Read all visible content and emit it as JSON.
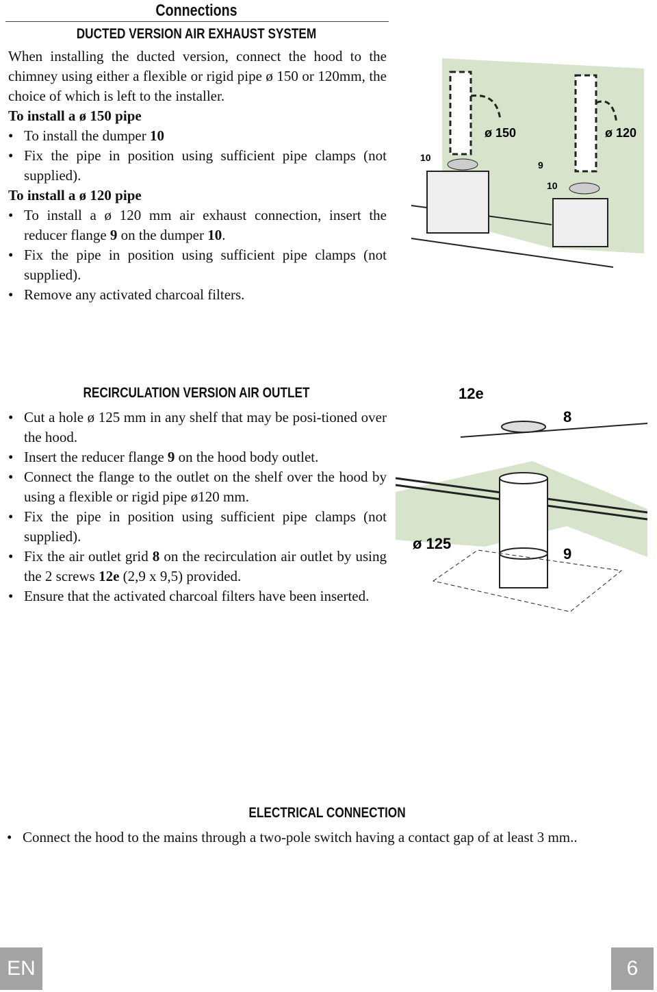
{
  "connections": {
    "title": "Connections"
  },
  "ducted": {
    "heading": "DUCTED VERSION AIR EXHAUST SYSTEM",
    "intro": "When installing the ducted version, connect the hood to the chimney using either a flexible or rigid pipe ø 150 or 120mm, the choice of which is left to the installer.",
    "pipe150": {
      "heading": "To install a ø 150 pipe",
      "bullets": [
        [
          "To install the dumper ",
          {
            "text": "10",
            "bold": true
          }
        ],
        [
          "Fix the pipe in position using sufficient pipe clamps (not supplied)."
        ]
      ]
    },
    "pipe120": {
      "heading": "To install a ø 120 pipe",
      "bullets": [
        [
          "To install a ø 120 mm air exhaust connection, insert the reducer flange ",
          {
            "text": "9",
            "bold": true
          },
          " on the dumper ",
          {
            "text": "10",
            "bold": true
          },
          "."
        ],
        [
          "Fix the pipe in position using sufficient pipe clamps (not supplied)."
        ],
        [
          "Remove any activated charcoal filters."
        ]
      ]
    },
    "figure": {
      "labels": [
        "10",
        "ø 150",
        "9",
        "10",
        "ø 120"
      ]
    }
  },
  "recirculation": {
    "heading": "RECIRCULATION VERSION AIR OUTLET",
    "bullets": [
      [
        "Cut a hole ø 125 mm in any shelf that may be posi-tioned over the hood."
      ],
      [
        "Insert the reducer flange ",
        {
          "text": "9",
          "bold": true
        },
        " on the hood body outlet."
      ],
      [
        "Connect the flange to the outlet on the shelf over the hood by using a flexible or rigid pipe ø120 mm."
      ],
      [
        "Fix the pipe in position using sufficient pipe clamps (not supplied)."
      ],
      [
        "Fix the air outlet grid ",
        {
          "text": "8",
          "bold": true
        },
        " on the recirculation air outlet by using the 2 screws ",
        {
          "text": "12e",
          "bold": true
        },
        " (2,9 x 9,5) provided."
      ],
      [
        "Ensure that the activated charcoal filters have been inserted."
      ]
    ],
    "figure": {
      "labels": [
        "12e",
        "8",
        "ø 125",
        "9"
      ]
    }
  },
  "electrical": {
    "heading": "ELECTRICAL CONNECTION",
    "bullets": [
      [
        "Connect the hood to the mains through a two-pole switch having a contact gap of at least 3 mm.."
      ]
    ]
  },
  "footer": {
    "language": "EN",
    "page": "6"
  }
}
